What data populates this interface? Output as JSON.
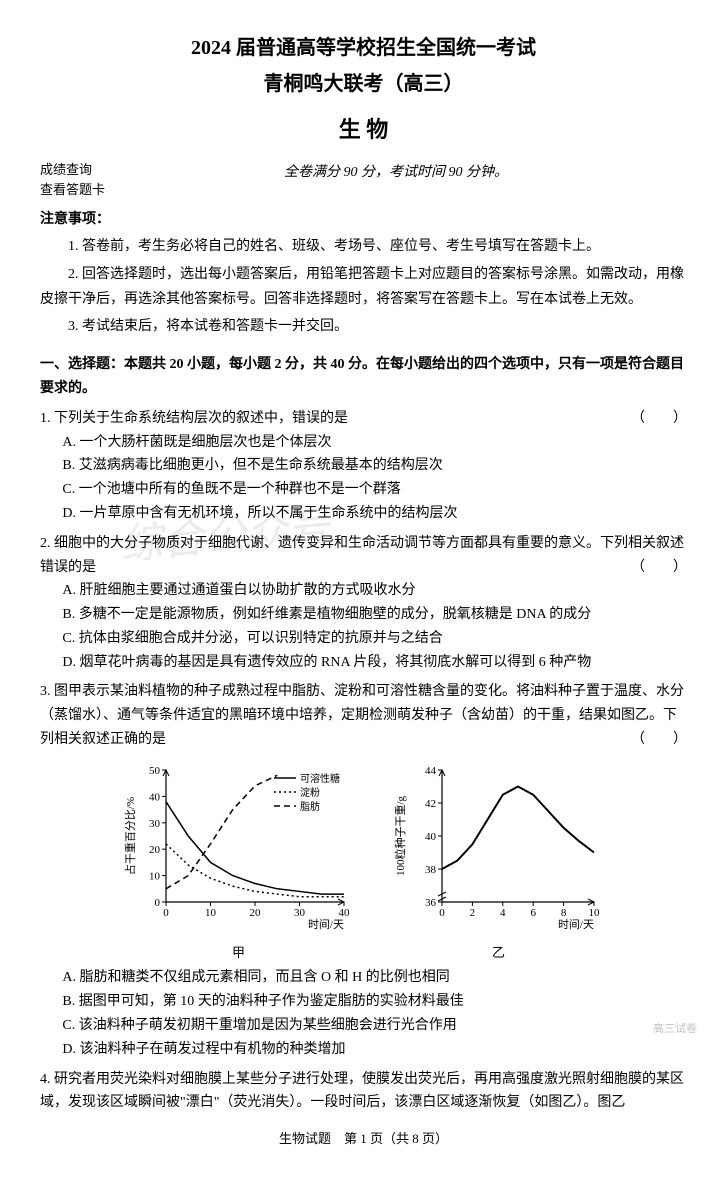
{
  "title_main": "2024 届普通高等学校招生全国统一考试",
  "title_sub": "青桐鸣大联考（高三）",
  "subject": "生 物",
  "meta_left_1": "成绩查询",
  "meta_left_2": "查看答题卡",
  "meta_center": "全卷满分 90 分，考试时间 90 分钟。",
  "notice_label": "注意事项：",
  "notice_1": "1. 答卷前，考生务必将自己的姓名、班级、考场号、座位号、考生号填写在答题卡上。",
  "notice_2": "2. 回答选择题时，选出每小题答案后，用铅笔把答题卡上对应题目的答案标号涂黑。如需改动，用橡皮擦干净后，再选涂其他答案标号。回答非选择题时，将答案写在答题卡上。写在本试卷上无效。",
  "notice_3": "3. 考试结束后，将本试卷和答题卡一并交回。",
  "section1_head": "一、选择题：本题共 20 小题，每小题 2 分，共 40 分。在每小题给出的四个选项中，只有一项是符合题目要求的。",
  "q1": {
    "stem": "1. 下列关于生命系统结构层次的叙述中，错误的是",
    "br": "（　　）",
    "A": "A. 一个大肠杆菌既是细胞层次也是个体层次",
    "B": "B. 艾滋病病毒比细胞更小，但不是生命系统最基本的结构层次",
    "C": "C. 一个池塘中所有的鱼既不是一个种群也不是一个群落",
    "D": "D. 一片草原中含有无机环境，所以不属于生命系统中的结构层次"
  },
  "q2": {
    "stem": "2. 细胞中的大分子物质对于细胞代谢、遗传变异和生命活动调节等方面都具有重要的意义。下列相关叙述错误的是",
    "br": "（　　）",
    "A": "A. 肝脏细胞主要通过通道蛋白以协助扩散的方式吸收水分",
    "B": "B. 多糖不一定是能源物质，例如纤维素是植物细胞壁的成分，脱氧核糖是 DNA 的成分",
    "C": "C. 抗体由浆细胞合成并分泌，可以识别特定的抗原并与之结合",
    "D": "D. 烟草花叶病毒的基因是具有遗传效应的 RNA 片段，将其彻底水解可以得到 6 种产物"
  },
  "q3": {
    "stem": "3. 图甲表示某油料植物的种子成熟过程中脂肪、淀粉和可溶性糖含量的变化。将油料种子置于温度、水分（蒸馏水）、通气等条件适宜的黑暗环境中培养，定期检测萌发种子（含幼苗）的干重，结果如图乙。下列相关叙述正确的是",
    "br": "（　　）",
    "A": "A. 脂肪和糖类不仅组成元素相同，而且含 O 和 H 的比例也相同",
    "B": "B. 据图甲可知，第 10 天的油料种子作为鉴定脂肪的实验材料最佳",
    "C": "C. 该油料种子萌发初期干重增加是因为某些细胞会进行光合作用",
    "D": "D. 该油料种子在萌发过程中有机物的种类增加"
  },
  "q4_stem": "4. 研究者用荧光染料对细胞膜上某些分子进行处理，使膜发出荧光后，再用高强度激光照射细胞膜的某区域，发现该区域瞬间被\"漂白\"（荧光消失）。一段时间后，该漂白区域逐渐恢复（如图乙）。图乙",
  "chart1": {
    "type": "line",
    "x_label": "时间/天",
    "y_label": "占干重百分比/%",
    "xlim": [
      0,
      40
    ],
    "ylim": [
      0,
      50
    ],
    "xticks": [
      0,
      10,
      20,
      30,
      40
    ],
    "yticks": [
      0,
      10,
      20,
      30,
      40,
      50
    ],
    "background_color": "#ffffff",
    "axis_color": "#000000",
    "label_fontsize": 11,
    "series": [
      {
        "name": "可溶性糖",
        "style": "solid",
        "color": "#000000",
        "width": 1.5,
        "points": [
          [
            0,
            38
          ],
          [
            5,
            25
          ],
          [
            10,
            15
          ],
          [
            15,
            10
          ],
          [
            20,
            7
          ],
          [
            25,
            5
          ],
          [
            30,
            4
          ],
          [
            35,
            3
          ],
          [
            40,
            3
          ]
        ]
      },
      {
        "name": "淀粉",
        "style": "dotted",
        "color": "#000000",
        "width": 1.5,
        "points": [
          [
            0,
            22
          ],
          [
            5,
            14
          ],
          [
            10,
            9
          ],
          [
            15,
            6
          ],
          [
            20,
            4
          ],
          [
            25,
            3
          ],
          [
            30,
            2
          ],
          [
            35,
            2
          ],
          [
            40,
            2
          ]
        ]
      },
      {
        "name": "脂肪",
        "style": "dashed",
        "color": "#000000",
        "width": 1.5,
        "points": [
          [
            0,
            5
          ],
          [
            5,
            10
          ],
          [
            10,
            22
          ],
          [
            15,
            35
          ],
          [
            20,
            44
          ],
          [
            25,
            48
          ]
        ]
      }
    ],
    "legend_pos": "top-right",
    "caption": "甲"
  },
  "chart2": {
    "type": "line",
    "x_label": "时间/天",
    "y_label": "100粒种子干重/g",
    "xlim": [
      0,
      10
    ],
    "ylim": [
      36,
      44
    ],
    "xticks": [
      0,
      2,
      4,
      6,
      8,
      10
    ],
    "yticks": [
      36,
      38,
      40,
      42,
      44
    ],
    "y_break": true,
    "background_color": "#ffffff",
    "axis_color": "#000000",
    "label_fontsize": 11,
    "series": [
      {
        "name": "干重",
        "style": "solid",
        "color": "#000000",
        "width": 2,
        "points": [
          [
            0,
            38
          ],
          [
            1,
            38.5
          ],
          [
            2,
            39.5
          ],
          [
            3,
            41
          ],
          [
            4,
            42.5
          ],
          [
            5,
            43
          ],
          [
            6,
            42.5
          ],
          [
            7,
            41.5
          ],
          [
            8,
            40.5
          ],
          [
            9,
            39.7
          ],
          [
            10,
            39
          ]
        ]
      }
    ],
    "caption": "乙"
  },
  "footer": "生物试题　第 1 页（共 8 页）",
  "watermark": "综合公众号",
  "wm_small": "高三试卷"
}
